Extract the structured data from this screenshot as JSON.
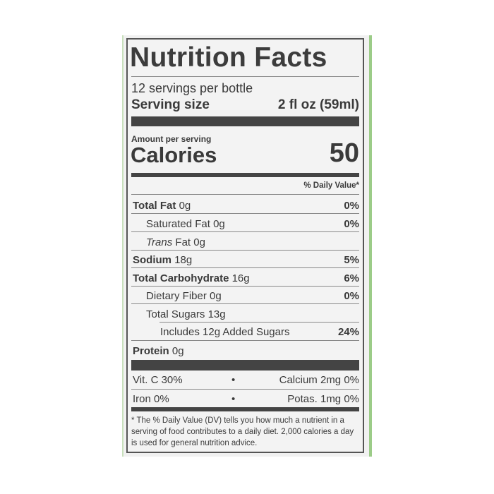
{
  "label": {
    "title": "Nutrition Facts",
    "servings": "12 servings per bottle",
    "serving_size_label": "Serving size",
    "serving_size_value": "2 fl oz (59ml)",
    "amount_per_serving": "Amount per serving",
    "calories_label": "Calories",
    "calories_value": "50",
    "dv_header": "% Daily Value*",
    "nutrients": [
      {
        "name": "Total Fat",
        "amount": "0g",
        "dv": "0%"
      },
      {
        "name": "Saturated Fat",
        "amount": "0g",
        "dv": "0%"
      },
      {
        "name": "Trans",
        "name2": "Fat",
        "amount": "0g",
        "dv": ""
      },
      {
        "name": "Sodium",
        "amount": "18g",
        "dv": "5%"
      },
      {
        "name": "Total Carbohydrate",
        "amount": "16g",
        "dv": "6%"
      },
      {
        "name": "Dietary Fiber",
        "amount": "0g",
        "dv": "0%"
      },
      {
        "name": "Total Sugars",
        "amount": "13g",
        "dv": ""
      },
      {
        "name": "Includes 12g Added Sugars",
        "amount": "",
        "dv": "24%"
      },
      {
        "name": "Protein",
        "amount": "0g",
        "dv": ""
      }
    ],
    "micros": [
      {
        "left": "Vit. C 30%",
        "right": "Calcium 2mg 0%"
      },
      {
        "left": "Iron 0%",
        "right": "Potas. 1mg 0%"
      }
    ],
    "bullet": "•",
    "footnote": "* The % Daily Value (DV) tells you how much a nutrient in a serving of food contributes to a daily diet. 2,000 calories a day is used for general nutrition advice."
  }
}
